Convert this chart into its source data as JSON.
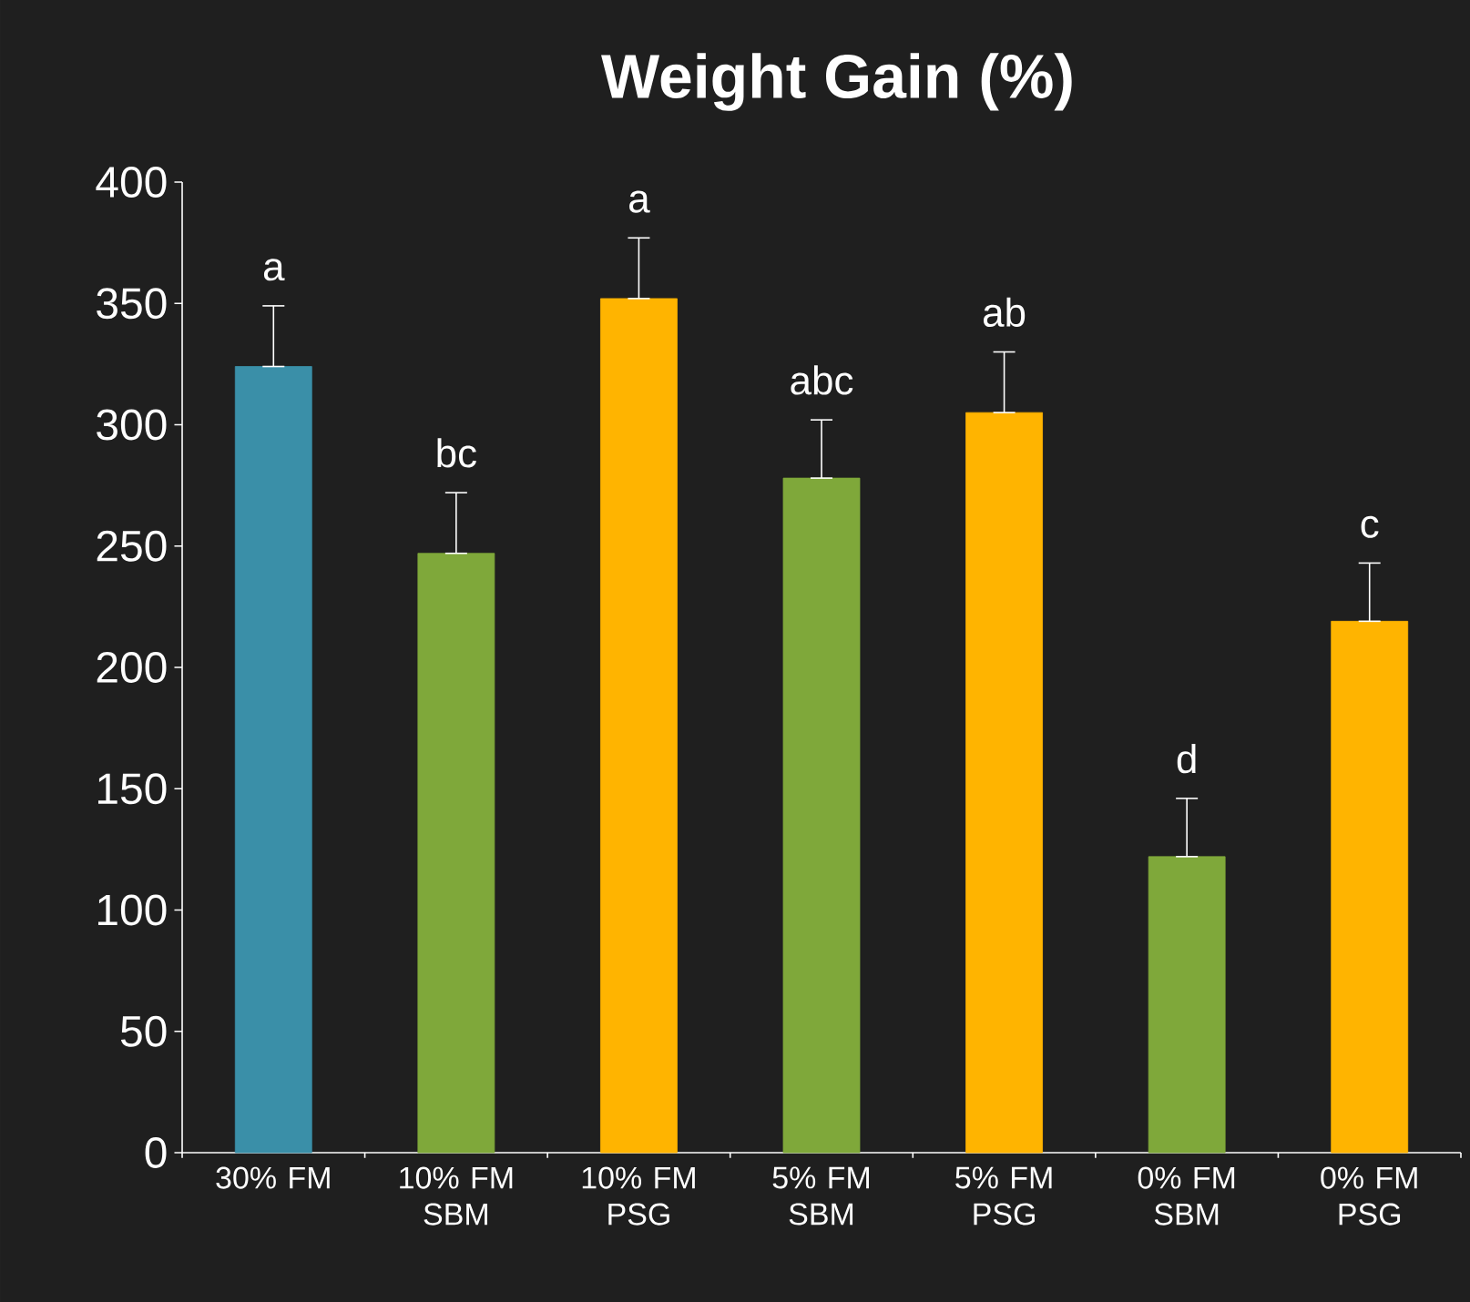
{
  "chart_data": {
    "type": "bar",
    "title": "Weight Gain (%)",
    "categories": [
      "30% FM",
      "10% FM SBM",
      "10% FM PSG",
      "5% FM SBM",
      "5% FM PSG",
      "0% FM SBM",
      "0% FM PSG"
    ],
    "values": [
      324,
      247,
      352,
      278,
      305,
      122,
      219
    ],
    "colors": [
      "#3a8fa8",
      "#7fa83a",
      "#ffb400",
      "#7fa83a",
      "#ffb400",
      "#7fa83a",
      "#ffb400"
    ],
    "errors": [
      [
        324,
        349
      ],
      [
        247,
        272
      ],
      [
        352,
        377
      ],
      [
        278,
        302
      ],
      [
        305,
        330
      ],
      [
        122,
        146
      ],
      [
        219,
        243
      ]
    ],
    "ylim": [
      0,
      400
    ],
    "yticks": [
      0,
      50,
      100,
      150,
      200,
      250,
      300,
      350,
      400
    ],
    "grid": false,
    "annotations": [
      "a",
      "bc",
      "a",
      "abc",
      "ab",
      "d",
      "c"
    ]
  }
}
